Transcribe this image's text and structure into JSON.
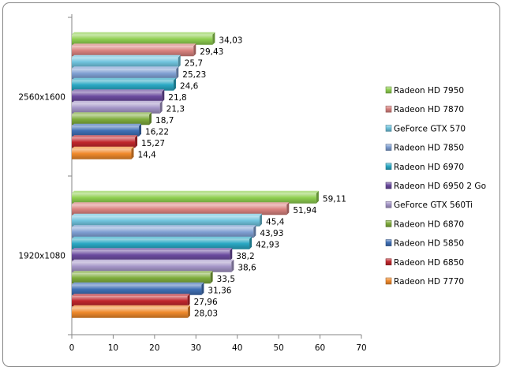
{
  "chart_data": {
    "type": "bar",
    "orientation": "horizontal",
    "title": "",
    "xlabel": "",
    "ylabel": "",
    "xlim": [
      0,
      70
    ],
    "xticks": [
      "0",
      "10",
      "20",
      "30",
      "40",
      "50",
      "60",
      "70"
    ],
    "grid": false,
    "legend_position": "right",
    "categories": [
      "2560x1600",
      "1920x1080"
    ],
    "series": [
      {
        "name": "Radeon HD 7950",
        "color": "#8fcf50",
        "values": [
          34.03,
          59.11
        ],
        "labels": [
          "34,03",
          "59,11"
        ]
      },
      {
        "name": "Radeon HD 7870",
        "color": "#d9827f",
        "values": [
          29.43,
          51.94
        ],
        "labels": [
          "29,43",
          "51,94"
        ]
      },
      {
        "name": "GeForce GTX 570",
        "color": "#6fc3dd",
        "values": [
          25.7,
          45.4
        ],
        "labels": [
          "25,7",
          "45,4"
        ]
      },
      {
        "name": "Radeon HD 7850",
        "color": "#7f9fd2",
        "values": [
          25.23,
          43.93
        ],
        "labels": [
          "25,23",
          "43,93"
        ]
      },
      {
        "name": "Radeon HD 6970",
        "color": "#2aa8c4",
        "values": [
          24.6,
          42.93
        ],
        "labels": [
          "24,6",
          "42,93"
        ]
      },
      {
        "name": "Radeon HD 6950 2 Go",
        "color": "#6a4a9e",
        "values": [
          21.8,
          38.2
        ],
        "labels": [
          "21,8",
          "38,2"
        ]
      },
      {
        "name": "GeForce GTX 560Ti",
        "color": "#a596c8",
        "values": [
          21.3,
          38.6
        ],
        "labels": [
          "21,3",
          "38,6"
        ]
      },
      {
        "name": "Radeon HD 6870",
        "color": "#7fac3c",
        "values": [
          18.7,
          33.5
        ],
        "labels": [
          "18,7",
          "33,5"
        ]
      },
      {
        "name": "Radeon HD 5850",
        "color": "#3f6fb5",
        "values": [
          16.22,
          31.36
        ],
        "labels": [
          "16,22",
          "31,36"
        ]
      },
      {
        "name": "Radeon HD 6850",
        "color": "#c0272d",
        "values": [
          15.27,
          27.96
        ],
        "labels": [
          "15,27",
          "27,96"
        ]
      },
      {
        "name": "Radeon HD 7770",
        "color": "#f08a2c",
        "values": [
          14.4,
          28.03
        ],
        "labels": [
          "14,4",
          "28,03"
        ]
      }
    ]
  }
}
